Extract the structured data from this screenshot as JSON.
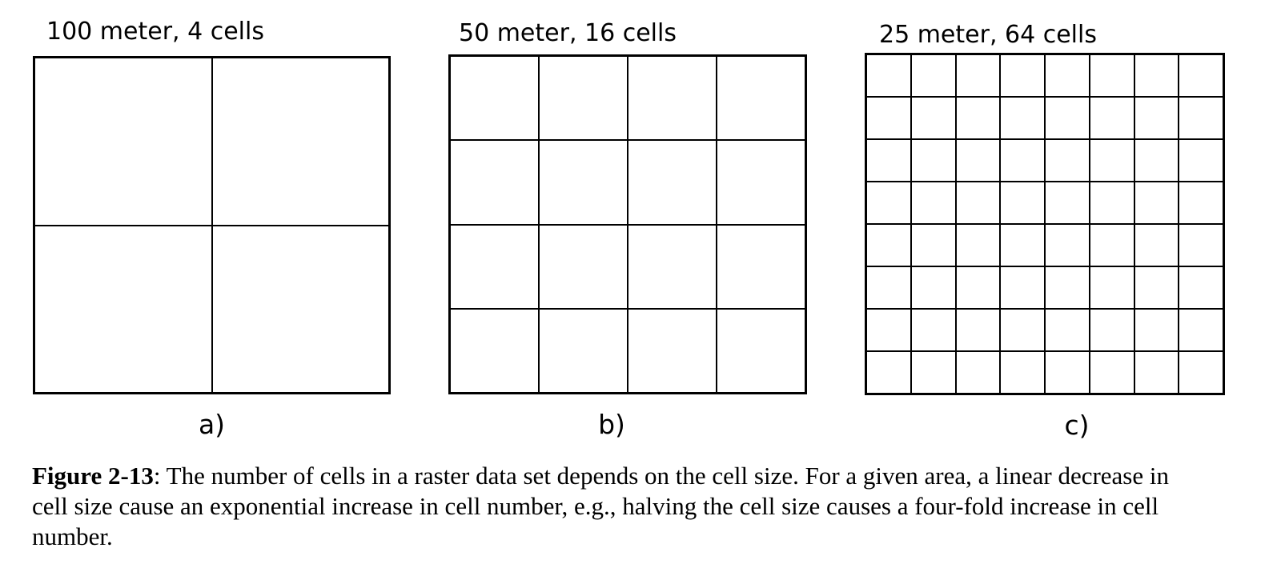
{
  "figure": {
    "panels": [
      {
        "title": "100 meter, 4 cells",
        "label": "a)",
        "rows": 2,
        "cols": 2,
        "cell_size_meters": 100,
        "cell_count": 4
      },
      {
        "title": "50 meter, 16 cells",
        "label": "b)",
        "rows": 4,
        "cols": 4,
        "cell_size_meters": 50,
        "cell_count": 16
      },
      {
        "title": "25 meter, 64 cells",
        "label": "c)",
        "rows": 8,
        "cols": 8,
        "cell_size_meters": 25,
        "cell_count": 64
      }
    ],
    "caption": {
      "bold": "Figure 2-13",
      "rest": ": The number of cells in a raster data set depends on the cell size. For a given area, a linear decrease in cell size cause an exponential increase in cell number, e.g., halving the cell size causes a four-fold increase in cell number."
    },
    "colors": {
      "line": "#000000",
      "background": "#ffffff",
      "text": "#000000"
    }
  }
}
